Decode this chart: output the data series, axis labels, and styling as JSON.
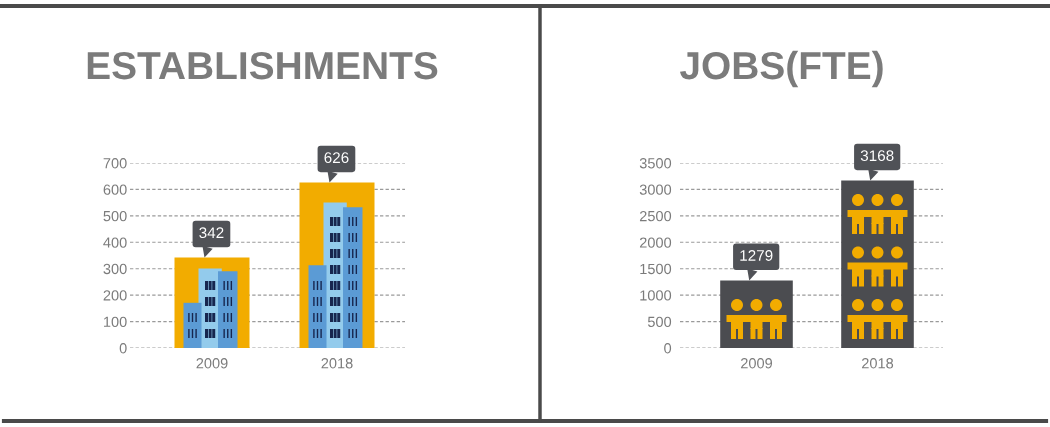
{
  "chart_data": [
    {
      "type": "bar",
      "title": "ESTABLISHMENTS",
      "categories": [
        "2009",
        "2018"
      ],
      "values": [
        342,
        626
      ],
      "color": "#f2ac00",
      "ylim": [
        0,
        700
      ],
      "yticks": [
        0,
        100,
        200,
        300,
        400,
        500,
        600,
        700
      ],
      "grid": "y",
      "data_labels": true
    },
    {
      "type": "bar",
      "title": "JOBS(FTE)",
      "categories": [
        "2009",
        "2018"
      ],
      "values": [
        1279,
        3168
      ],
      "color": "#4b4c50",
      "ylim": [
        0,
        3500
      ],
      "yticks": [
        0,
        500,
        1000,
        1500,
        2000,
        2500,
        3000,
        3500
      ],
      "grid": "y",
      "data_labels": true
    }
  ]
}
